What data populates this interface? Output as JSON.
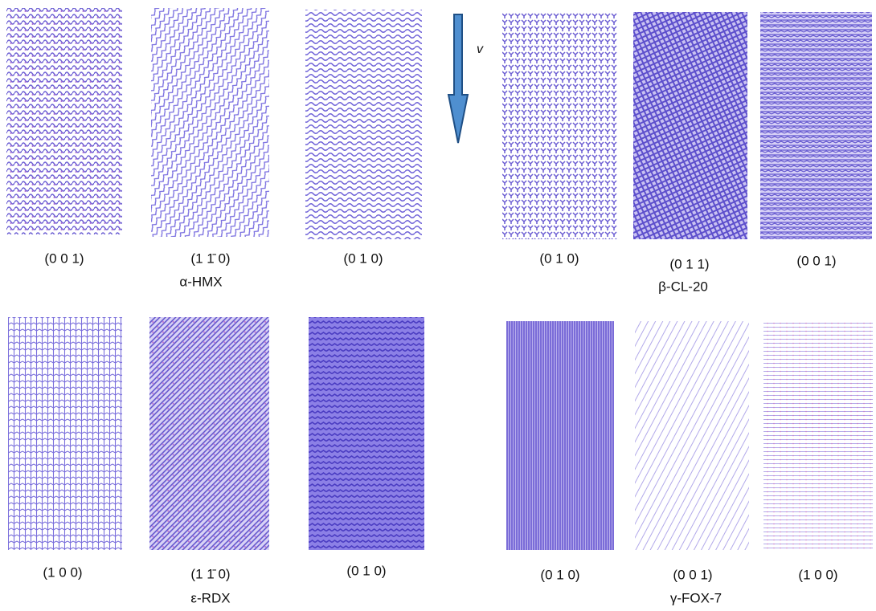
{
  "groups": [
    {
      "name": "α-HMX",
      "panels": [
        "(0 0 1)",
        "(1 1̄ 0)",
        "(0 1 0)"
      ]
    },
    {
      "name": "β-CL-20",
      "panels": [
        "(0 1 0)",
        "(0 1 1)",
        "(0 0 1)"
      ]
    },
    {
      "name": "ε-RDX",
      "panels": [
        "(1 0 0)",
        "(1 1̄ 0)",
        "(0 1 0)"
      ]
    },
    {
      "name": "γ-FOX-7",
      "panels": [
        "(0 1 0)",
        "(0 0 1)",
        "(1 0 0)"
      ]
    }
  ],
  "velocity_label": "v"
}
